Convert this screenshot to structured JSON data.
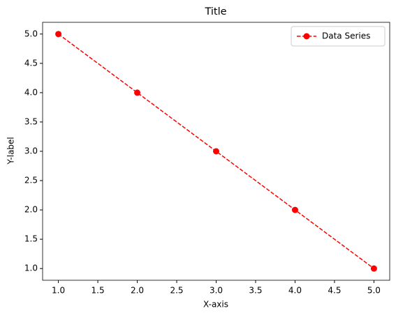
{
  "chart_data": {
    "type": "line",
    "title": "Title",
    "xlabel": "X-axis",
    "ylabel": "Y-label",
    "x": [
      1,
      2,
      3,
      4,
      5
    ],
    "series": [
      {
        "name": "Data Series",
        "color": "#ff0000",
        "values": [
          5,
          4,
          3,
          2,
          1
        ]
      }
    ],
    "xlim": [
      0.8,
      5.2
    ],
    "xticks": [
      {
        "value": 1,
        "label": "1.0"
      },
      1.5,
      {
        "value": 2,
        "label": "2.0"
      },
      2.5,
      {
        "value": 3,
        "label": "3.0"
      },
      3.5,
      {
        "value": 4,
        "label": "4.0"
      },
      4.5,
      {
        "value": 5,
        "label": "5.0"
      }
    ],
    "ylim": [
      0.8,
      5.2
    ],
    "yticks": [
      {
        "value": 1,
        "label": "1.0"
      },
      1.5,
      {
        "value": 2,
        "label": "2.0"
      },
      2.5,
      {
        "value": 3,
        "label": "3.0"
      },
      3.5,
      {
        "value": 4,
        "label": "4.0"
      },
      4.5,
      {
        "value": 5,
        "label": "5.0"
      }
    ],
    "line_style": "dashed",
    "marker": "circle",
    "grid": false,
    "legend": "upper right"
  }
}
